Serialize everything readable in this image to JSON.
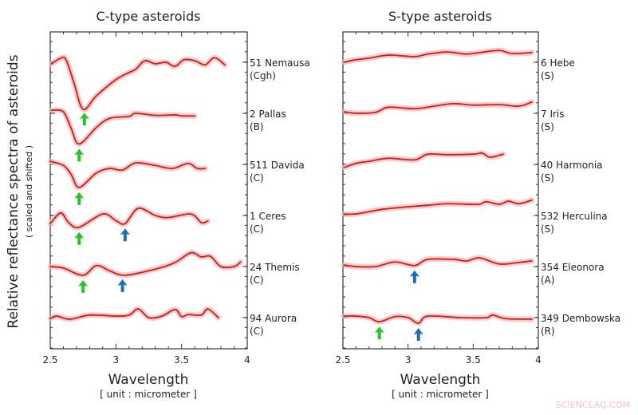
{
  "colors": {
    "line": "#c81e1e",
    "band": "#f6b5b5",
    "green_arrow": "#2cc02c",
    "blue_arrow": "#1a6fb0",
    "watermark": "#f2c4c8"
  },
  "y_axis": {
    "label": "Relative reflectance spectra of asteroids",
    "sublabel": "( scaled and shifted )"
  },
  "watermark": "SCIENCEAQ.COM",
  "chart_data": [
    {
      "type": "line",
      "title": "C-type asteroids",
      "xlabel": "Wavelength",
      "xunit": "[ unit : micrometer ]",
      "xlim": [
        2.5,
        4
      ],
      "xticks": [
        "2.5",
        "3",
        "3.5",
        "4"
      ],
      "y_note": "values are offsets from each spectrum's labelled tick, in units of tick spacing",
      "series": [
        {
          "name": "51 Nemausa",
          "class": "(Cgh)",
          "points": [
            [
              2.51,
              -0.03
            ],
            [
              2.58,
              0.08
            ],
            [
              2.62,
              0.05
            ],
            [
              2.68,
              -0.4
            ],
            [
              2.75,
              -0.92
            ],
            [
              2.85,
              -0.66
            ],
            [
              3.0,
              -0.34
            ],
            [
              3.1,
              -0.2
            ],
            [
              3.15,
              -0.14
            ],
            [
              3.22,
              0.03
            ],
            [
              3.3,
              -0.03
            ],
            [
              3.38,
              0.0
            ],
            [
              3.45,
              -0.08
            ],
            [
              3.52,
              0.05
            ],
            [
              3.6,
              0.03
            ],
            [
              3.68,
              -0.05
            ],
            [
              3.75,
              0.09
            ],
            [
              3.83,
              -0.05
            ]
          ],
          "arrows": [
            {
              "x": 2.76,
              "color": "green"
            }
          ]
        },
        {
          "name": "2 Pallas",
          "class": "(B)",
          "points": [
            [
              2.51,
              0.06
            ],
            [
              2.6,
              0.03
            ],
            [
              2.66,
              -0.3
            ],
            [
              2.72,
              -0.6
            ],
            [
              2.85,
              -0.28
            ],
            [
              2.95,
              -0.1
            ],
            [
              3.1,
              -0.06
            ],
            [
              3.15,
              0.0
            ],
            [
              3.3,
              -0.04
            ],
            [
              3.45,
              -0.03
            ],
            [
              3.5,
              -0.05
            ],
            [
              3.6,
              -0.05
            ]
          ],
          "arrows": [
            {
              "x": 2.72,
              "color": "green"
            }
          ]
        },
        {
          "name": "511 Davida",
          "class": "(C)",
          "points": [
            [
              2.5,
              0.06
            ],
            [
              2.6,
              -0.02
            ],
            [
              2.66,
              -0.2
            ],
            [
              2.72,
              -0.45
            ],
            [
              2.85,
              -0.17
            ],
            [
              2.95,
              -0.08
            ],
            [
              3.05,
              -0.11
            ],
            [
              3.15,
              0.03
            ],
            [
              3.3,
              -0.02
            ],
            [
              3.43,
              -0.08
            ],
            [
              3.55,
              0.02
            ],
            [
              3.62,
              -0.08
            ],
            [
              3.68,
              -0.08
            ]
          ],
          "arrows": [
            {
              "x": 2.72,
              "color": "green"
            }
          ]
        },
        {
          "name": "1 Ceres",
          "class": "(C)",
          "points": [
            [
              2.5,
              -0.16
            ],
            [
              2.58,
              0.05
            ],
            [
              2.64,
              -0.14
            ],
            [
              2.72,
              -0.23
            ],
            [
              2.9,
              0.03
            ],
            [
              3.0,
              -0.1
            ],
            [
              3.07,
              -0.16
            ],
            [
              3.17,
              0.14
            ],
            [
              3.3,
              0.0
            ],
            [
              3.4,
              -0.04
            ],
            [
              3.57,
              0.03
            ],
            [
              3.65,
              -0.14
            ],
            [
              3.7,
              -0.11
            ]
          ],
          "arrows": [
            {
              "x": 2.72,
              "color": "green"
            },
            {
              "x": 3.07,
              "color": "blue"
            }
          ]
        },
        {
          "name": "24 Themis",
          "class": "(C)",
          "points": [
            [
              2.5,
              0.0
            ],
            [
              2.6,
              -0.03
            ],
            [
              2.75,
              -0.17
            ],
            [
              2.85,
              0.02
            ],
            [
              2.95,
              -0.08
            ],
            [
              3.07,
              -0.17
            ],
            [
              3.3,
              -0.05
            ],
            [
              3.45,
              0.08
            ],
            [
              3.57,
              0.27
            ],
            [
              3.65,
              0.19
            ],
            [
              3.72,
              0.2
            ],
            [
              3.8,
              0.0
            ],
            [
              3.9,
              0.0
            ],
            [
              3.95,
              0.09
            ]
          ],
          "arrows": [
            {
              "x": 2.75,
              "color": "green"
            },
            {
              "x": 3.05,
              "color": "blue"
            }
          ]
        },
        {
          "name": "94 Aurora",
          "class": "(C)",
          "points": [
            [
              2.5,
              -0.02
            ],
            [
              2.55,
              0.03
            ],
            [
              2.65,
              -0.03
            ],
            [
              2.8,
              0.05
            ],
            [
              3.0,
              0.03
            ],
            [
              3.1,
              0.05
            ],
            [
              3.17,
              0.17
            ],
            [
              3.25,
              0.0
            ],
            [
              3.35,
              0.03
            ],
            [
              3.45,
              0.16
            ],
            [
              3.5,
              0.02
            ],
            [
              3.55,
              0.06
            ],
            [
              3.65,
              0.05
            ],
            [
              3.7,
              0.17
            ],
            [
              3.78,
              0.0
            ]
          ],
          "arrows": []
        }
      ]
    },
    {
      "type": "line",
      "title": "S-type asteroids",
      "xlabel": "Wavelength",
      "xunit": "[ unit : micrometer ]",
      "xlim": [
        2.5,
        4
      ],
      "xticks": [
        "2.5",
        "3",
        "3.5",
        "4"
      ],
      "y_note": "values are offsets from each spectrum's labelled tick, in units of tick spacing",
      "series": [
        {
          "name": "6 Hebe",
          "class": "(S)",
          "points": [
            [
              2.51,
              0.0
            ],
            [
              2.6,
              0.05
            ],
            [
              2.7,
              0.08
            ],
            [
              2.85,
              0.14
            ],
            [
              3.05,
              0.11
            ],
            [
              3.15,
              0.16
            ],
            [
              3.3,
              0.2
            ],
            [
              3.45,
              0.16
            ],
            [
              3.55,
              0.19
            ],
            [
              3.7,
              0.23
            ],
            [
              3.8,
              0.17
            ],
            [
              3.95,
              0.19
            ]
          ],
          "arrows": []
        },
        {
          "name": "7 Iris",
          "class": "(S)",
          "points": [
            [
              2.51,
              0.03
            ],
            [
              2.6,
              0.0
            ],
            [
              2.75,
              0.02
            ],
            [
              2.85,
              0.12
            ],
            [
              3.05,
              0.09
            ],
            [
              3.2,
              0.14
            ],
            [
              3.35,
              0.19
            ],
            [
              3.5,
              0.16
            ],
            [
              3.7,
              0.17
            ],
            [
              3.85,
              0.14
            ],
            [
              3.95,
              0.22
            ]
          ],
          "arrows": []
        },
        {
          "name": "40 Harmonia",
          "class": "(S)",
          "points": [
            [
              2.51,
              -0.06
            ],
            [
              2.6,
              0.02
            ],
            [
              2.7,
              0.06
            ],
            [
              2.85,
              0.12
            ],
            [
              3.05,
              0.09
            ],
            [
              3.15,
              0.2
            ],
            [
              3.3,
              0.19
            ],
            [
              3.5,
              0.2
            ],
            [
              3.57,
              0.22
            ],
            [
              3.63,
              0.14
            ],
            [
              3.73,
              0.2
            ]
          ],
          "arrows": []
        },
        {
          "name": "532 Herculina",
          "class": "(S)",
          "points": [
            [
              2.51,
              0.03
            ],
            [
              2.6,
              0.03
            ],
            [
              2.8,
              0.12
            ],
            [
              3.0,
              0.17
            ],
            [
              3.15,
              0.2
            ],
            [
              3.3,
              0.23
            ],
            [
              3.45,
              0.22
            ],
            [
              3.55,
              0.22
            ],
            [
              3.6,
              0.27
            ],
            [
              3.7,
              0.22
            ],
            [
              3.77,
              0.28
            ],
            [
              3.85,
              0.23
            ],
            [
              3.95,
              0.3
            ]
          ],
          "arrows": []
        },
        {
          "name": "354 Eleonora",
          "class": "(A)",
          "points": [
            [
              2.51,
              0.03
            ],
            [
              2.6,
              0.0
            ],
            [
              2.75,
              0.0
            ],
            [
              2.9,
              0.09
            ],
            [
              3.05,
              0.02
            ],
            [
              3.15,
              0.14
            ],
            [
              3.35,
              0.14
            ],
            [
              3.45,
              0.11
            ],
            [
              3.55,
              0.17
            ],
            [
              3.7,
              0.05
            ],
            [
              3.85,
              0.08
            ],
            [
              3.95,
              0.11
            ]
          ],
          "arrows": [
            {
              "x": 3.05,
              "color": "blue"
            }
          ]
        },
        {
          "name": "349 Dembowska",
          "class": "(R)",
          "points": [
            [
              2.51,
              0.03
            ],
            [
              2.6,
              0.03
            ],
            [
              2.7,
              0.0
            ],
            [
              2.78,
              -0.08
            ],
            [
              2.9,
              0.02
            ],
            [
              3.0,
              0.0
            ],
            [
              3.08,
              -0.11
            ],
            [
              3.15,
              0.03
            ],
            [
              3.4,
              0.0
            ],
            [
              3.6,
              0.0
            ],
            [
              3.65,
              0.05
            ],
            [
              3.75,
              -0.02
            ],
            [
              3.95,
              -0.03
            ]
          ],
          "arrows": [
            {
              "x": 2.78,
              "color": "green"
            },
            {
              "x": 3.08,
              "color": "blue"
            }
          ]
        }
      ]
    }
  ]
}
